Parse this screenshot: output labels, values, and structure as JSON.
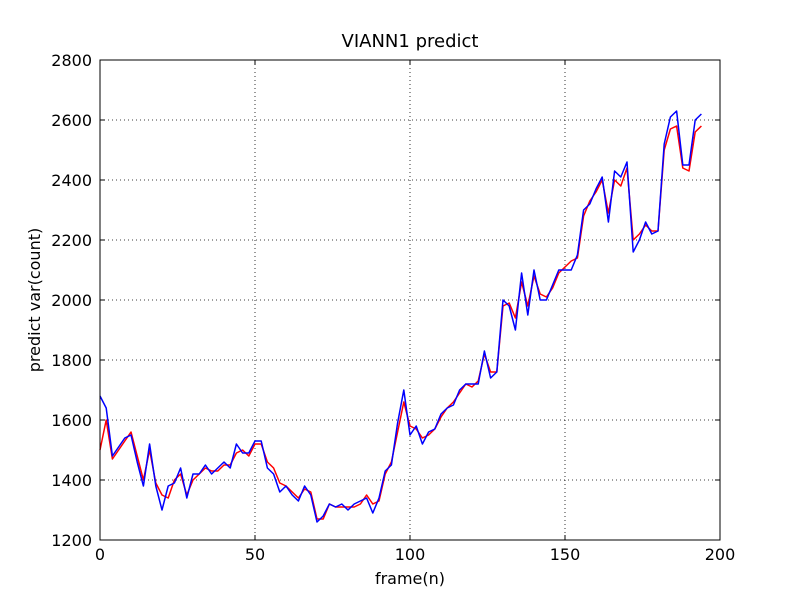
{
  "chart_data": {
    "type": "line",
    "title": "VIANN1 predict",
    "x_label": "frame(n)",
    "y_label": "predict var(count)",
    "x": [
      0,
      2,
      4,
      6,
      8,
      10,
      12,
      14,
      16,
      18,
      20,
      22,
      24,
      26,
      28,
      30,
      32,
      34,
      36,
      38,
      40,
      42,
      44,
      46,
      48,
      50,
      52,
      54,
      56,
      58,
      60,
      62,
      64,
      66,
      68,
      70,
      72,
      74,
      76,
      78,
      80,
      82,
      84,
      86,
      88,
      90,
      92,
      94,
      96,
      98,
      100,
      102,
      104,
      106,
      108,
      110,
      112,
      114,
      116,
      118,
      120,
      122,
      124,
      126,
      128,
      130,
      132,
      134,
      136,
      138,
      140,
      142,
      144,
      146,
      148,
      150,
      152,
      154,
      156,
      158,
      160,
      162,
      164,
      166,
      168,
      170,
      172,
      174,
      176,
      178,
      180,
      182,
      184,
      186,
      188,
      190,
      192,
      194
    ],
    "series": [
      {
        "color": "red",
        "values": [
          1500,
          1600,
          1470,
          1500,
          1530,
          1560,
          1480,
          1400,
          1500,
          1390,
          1350,
          1340,
          1400,
          1420,
          1350,
          1400,
          1420,
          1440,
          1430,
          1430,
          1450,
          1450,
          1490,
          1500,
          1480,
          1520,
          1520,
          1460,
          1440,
          1390,
          1380,
          1360,
          1340,
          1370,
          1360,
          1270,
          1270,
          1320,
          1310,
          1310,
          1310,
          1310,
          1320,
          1350,
          1320,
          1330,
          1420,
          1460,
          1560,
          1660,
          1580,
          1570,
          1540,
          1550,
          1570,
          1610,
          1640,
          1660,
          1690,
          1720,
          1710,
          1730,
          1820,
          1760,
          1760,
          1980,
          1990,
          1940,
          2060,
          1980,
          2080,
          2020,
          2010,
          2040,
          2090,
          2110,
          2130,
          2140,
          2280,
          2330,
          2360,
          2400,
          2290,
          2400,
          2380,
          2440,
          2200,
          2220,
          2250,
          2230,
          2230,
          2500,
          2570,
          2580,
          2440,
          2430,
          2560,
          2580
        ]
      },
      {
        "color": "blue",
        "values": [
          1680,
          1640,
          1480,
          1510,
          1540,
          1550,
          1460,
          1380,
          1520,
          1380,
          1300,
          1380,
          1390,
          1440,
          1340,
          1420,
          1420,
          1450,
          1420,
          1440,
          1460,
          1440,
          1520,
          1490,
          1490,
          1530,
          1530,
          1440,
          1420,
          1360,
          1380,
          1350,
          1330,
          1380,
          1350,
          1260,
          1280,
          1320,
          1310,
          1320,
          1300,
          1320,
          1330,
          1340,
          1290,
          1340,
          1430,
          1450,
          1590,
          1700,
          1550,
          1580,
          1520,
          1560,
          1570,
          1620,
          1640,
          1650,
          1700,
          1720,
          1720,
          1720,
          1830,
          1740,
          1760,
          2000,
          1980,
          1900,
          2090,
          1950,
          2100,
          2000,
          2000,
          2050,
          2100,
          2100,
          2100,
          2150,
          2300,
          2320,
          2370,
          2410,
          2260,
          2430,
          2410,
          2460,
          2160,
          2200,
          2260,
          2220,
          2230,
          2520,
          2610,
          2630,
          2450,
          2450,
          2600,
          2620
        ]
      }
    ],
    "xlim": [
      0,
      200
    ],
    "xticks": [
      0,
      50,
      100,
      150,
      200
    ],
    "ylim": [
      1200,
      2800
    ],
    "yticks": [
      1200,
      1400,
      1600,
      1800,
      2000,
      2200,
      2400,
      2600,
      2800
    ],
    "grid": true
  }
}
